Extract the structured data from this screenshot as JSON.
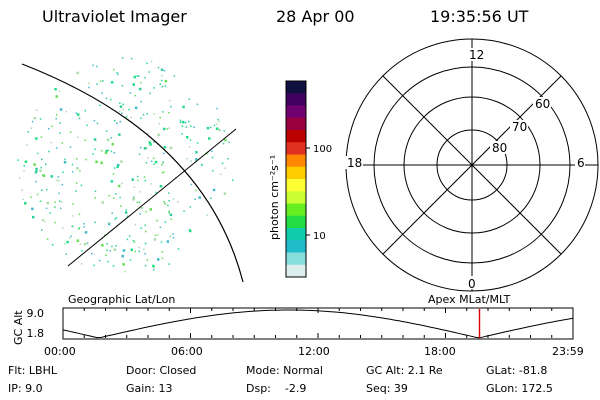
{
  "header": {
    "instrument": "Ultraviolet Imager",
    "date": "28 Apr 00",
    "time": "19:35:56 UT"
  },
  "colorbar": {
    "unit_label": "photon cm⁻²s⁻¹",
    "ticks": [
      "100",
      "10"
    ],
    "colors": [
      "#101040",
      "#400060",
      "#700070",
      "#990040",
      "#bb0000",
      "#e03020",
      "#ff8800",
      "#ffcc00",
      "#ffff33",
      "#ccff33",
      "#66ee22",
      "#22dd44",
      "#11ccaa",
      "#22bbcc",
      "#88dddd",
      "#ddeeee"
    ]
  },
  "left_plot": {
    "dot_colors": [
      "#22dd88",
      "#33cc99",
      "#66dd55",
      "#44bbcc",
      "#aaddaa"
    ]
  },
  "polar_plot": {
    "mlt_labels": {
      "top": "12",
      "bottom": "0",
      "left": "18",
      "right": "6"
    },
    "lat_labels": [
      "60",
      "70",
      "80"
    ]
  },
  "timeline": {
    "left_title": "Geographic Lat/Lon",
    "right_title": "Apex MLat/MLT",
    "ylabel": "GC Alt",
    "ymax": "9.0",
    "ymin": "1.8",
    "times": [
      "00:00",
      "06:00",
      "12:00",
      "18:00",
      "23:59"
    ],
    "marker_time": "19:35:56",
    "marker_color": "#dd0000"
  },
  "info": {
    "flt": "Flt:  LBHL",
    "ip": "IP:  9.0",
    "door": "Door: Closed",
    "gain": "Gain: 13",
    "mode": "Mode: Normal",
    "dsp": "Dsp:    -2.9",
    "gcalt": "GC Alt: 2.1 Re",
    "seq": "Seq: 39",
    "glat": "GLat: -81.8",
    "glon": "GLon: 172.5"
  }
}
